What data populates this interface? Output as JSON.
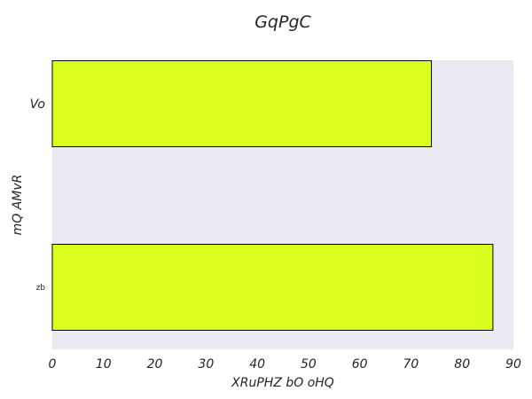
{
  "chart_data": {
    "type": "bar",
    "orientation": "horizontal",
    "title": "GqPgC",
    "xlabel": "XRuPHZ bO oHQ",
    "ylabel": "mQ AMvR",
    "categories": [
      "Vo",
      "zb"
    ],
    "values": [
      74,
      86
    ],
    "xlim": [
      0,
      90
    ],
    "xticks": [
      0,
      10,
      20,
      30,
      40,
      50,
      60,
      70,
      80,
      90
    ],
    "grid": false,
    "bar_color": "#dbff1e",
    "bar_edge_color": "#000000",
    "plot_background": "#eaeaf2"
  }
}
